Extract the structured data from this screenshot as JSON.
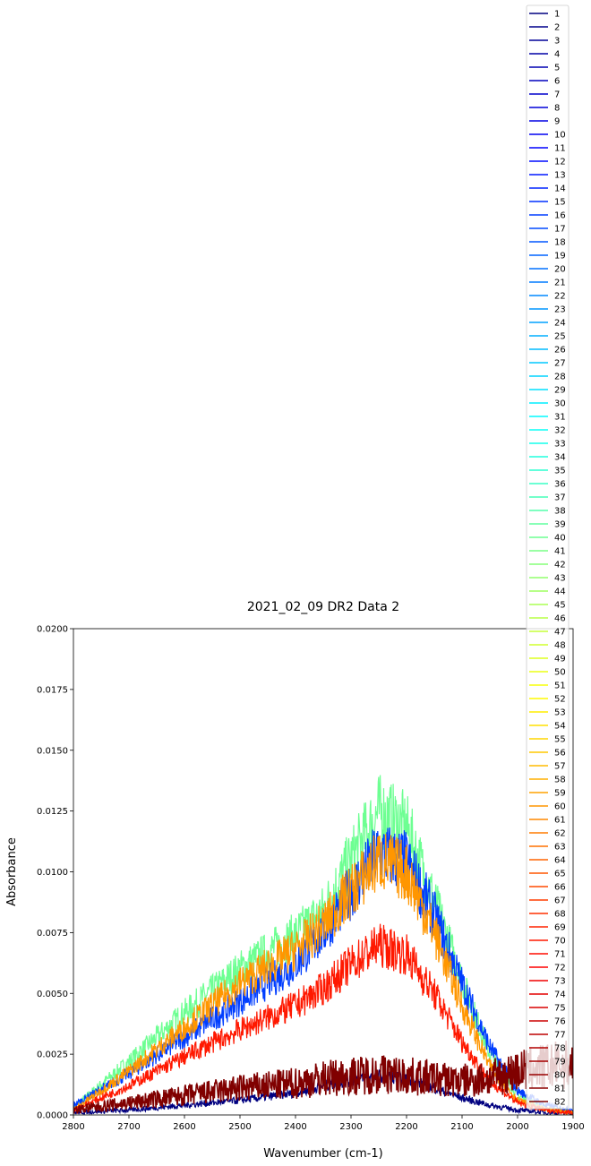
{
  "chart_data": {
    "type": "line",
    "title": "2021_02_09 DR2 Data 2",
    "xlabel": "Wavenumber (cm-1)",
    "ylabel": "Absorbance",
    "xlim": [
      2800,
      1900
    ],
    "ylim": [
      0,
      0.02
    ],
    "x_inverted": true,
    "xticks": [
      2800,
      2700,
      2600,
      2500,
      2400,
      2300,
      2200,
      2100,
      2000,
      1900
    ],
    "xtick_labels": [
      "2800",
      "2700",
      "2600",
      "2500",
      "2400",
      "2300",
      "2200",
      "2100",
      "2000",
      "1900"
    ],
    "yticks": [
      0,
      0.0025,
      0.005,
      0.0075,
      0.01,
      0.0125,
      0.015,
      0.0175,
      0.02
    ],
    "ytick_labels": [
      "0.0000",
      "0.0025",
      "0.0050",
      "0.0075",
      "0.0100",
      "0.0125",
      "0.0150",
      "0.0175",
      "0.0200"
    ],
    "grid": false,
    "legend_position": "upper-right, extending above plot",
    "colormap": "jet",
    "series_names": [
      "1",
      "2",
      "3",
      "4",
      "5",
      "6",
      "7",
      "8",
      "9",
      "10",
      "11",
      "12",
      "13",
      "14",
      "15",
      "16",
      "17",
      "18",
      "19",
      "20",
      "21",
      "22",
      "23",
      "24",
      "25",
      "26",
      "27",
      "28",
      "29",
      "30",
      "31",
      "32",
      "33",
      "34",
      "35",
      "36",
      "37",
      "38",
      "39",
      "40",
      "41",
      "42",
      "43",
      "44",
      "45",
      "46",
      "47",
      "48",
      "49",
      "50",
      "51",
      "52",
      "53",
      "54",
      "55",
      "56",
      "57",
      "58",
      "59",
      "60",
      "61",
      "62",
      "63",
      "64",
      "65",
      "66",
      "67",
      "68",
      "69",
      "70",
      "71",
      "72",
      "73",
      "74",
      "75",
      "76",
      "77",
      "78",
      "79",
      "80",
      "81",
      "82"
    ],
    "envelope_series": [
      {
        "series": "1",
        "x": [
          2800,
          2700,
          2600,
          2500,
          2400,
          2350,
          2300,
          2250,
          2200,
          2150,
          2100,
          2050,
          2000,
          1950,
          1900
        ],
        "y": [
          0.0001,
          0.0002,
          0.0004,
          0.0006,
          0.0009,
          0.0012,
          0.0014,
          0.0016,
          0.0015,
          0.0011,
          0.0007,
          0.0004,
          0.0002,
          0.0001,
          0.0001
        ]
      },
      {
        "series": "16",
        "x": [
          2800,
          2700,
          2600,
          2500,
          2400,
          2350,
          2300,
          2250,
          2200,
          2150,
          2100,
          2050,
          2000,
          1950,
          1900
        ],
        "y": [
          0.0004,
          0.0017,
          0.0032,
          0.0047,
          0.0062,
          0.0075,
          0.0092,
          0.0108,
          0.0104,
          0.0082,
          0.0054,
          0.0028,
          0.001,
          0.0004,
          0.0002
        ]
      },
      {
        "series": "40",
        "x": [
          2800,
          2700,
          2600,
          2500,
          2400,
          2350,
          2300,
          2250,
          2200,
          2150,
          2100,
          2050,
          2000,
          1950,
          1900
        ],
        "y": [
          0.0003,
          0.0022,
          0.0042,
          0.006,
          0.0074,
          0.0084,
          0.0105,
          0.0125,
          0.0118,
          0.0088,
          0.0055,
          0.0025,
          0.0008,
          0.0003,
          0.0001
        ]
      },
      {
        "series": "60",
        "x": [
          2800,
          2700,
          2600,
          2500,
          2400,
          2350,
          2300,
          2250,
          2200,
          2150,
          2100,
          2050,
          2000,
          1950,
          1900
        ],
        "y": [
          0.0002,
          0.0018,
          0.0036,
          0.0054,
          0.0068,
          0.0078,
          0.0092,
          0.0105,
          0.01,
          0.0075,
          0.0045,
          0.002,
          0.0006,
          0.0002,
          0.0001
        ]
      },
      {
        "series": "70",
        "x": [
          2800,
          2700,
          2600,
          2500,
          2400,
          2350,
          2300,
          2250,
          2200,
          2150,
          2100,
          2050,
          2000,
          1950,
          1900
        ],
        "y": [
          0.0002,
          0.0012,
          0.0024,
          0.0035,
          0.0045,
          0.0052,
          0.0062,
          0.007,
          0.0066,
          0.005,
          0.003,
          0.0014,
          0.0005,
          0.0002,
          0.0001
        ]
      },
      {
        "series": "82",
        "x": [
          2800,
          2700,
          2600,
          2500,
          2400,
          2350,
          2300,
          2250,
          2200,
          2150,
          2100,
          2050,
          2000,
          1950,
          1900
        ],
        "y": [
          0.0002,
          0.0005,
          0.0008,
          0.0011,
          0.0013,
          0.0015,
          0.0016,
          0.0017,
          0.0016,
          0.0015,
          0.0014,
          0.0015,
          0.0018,
          0.002,
          0.0021
        ]
      }
    ]
  }
}
